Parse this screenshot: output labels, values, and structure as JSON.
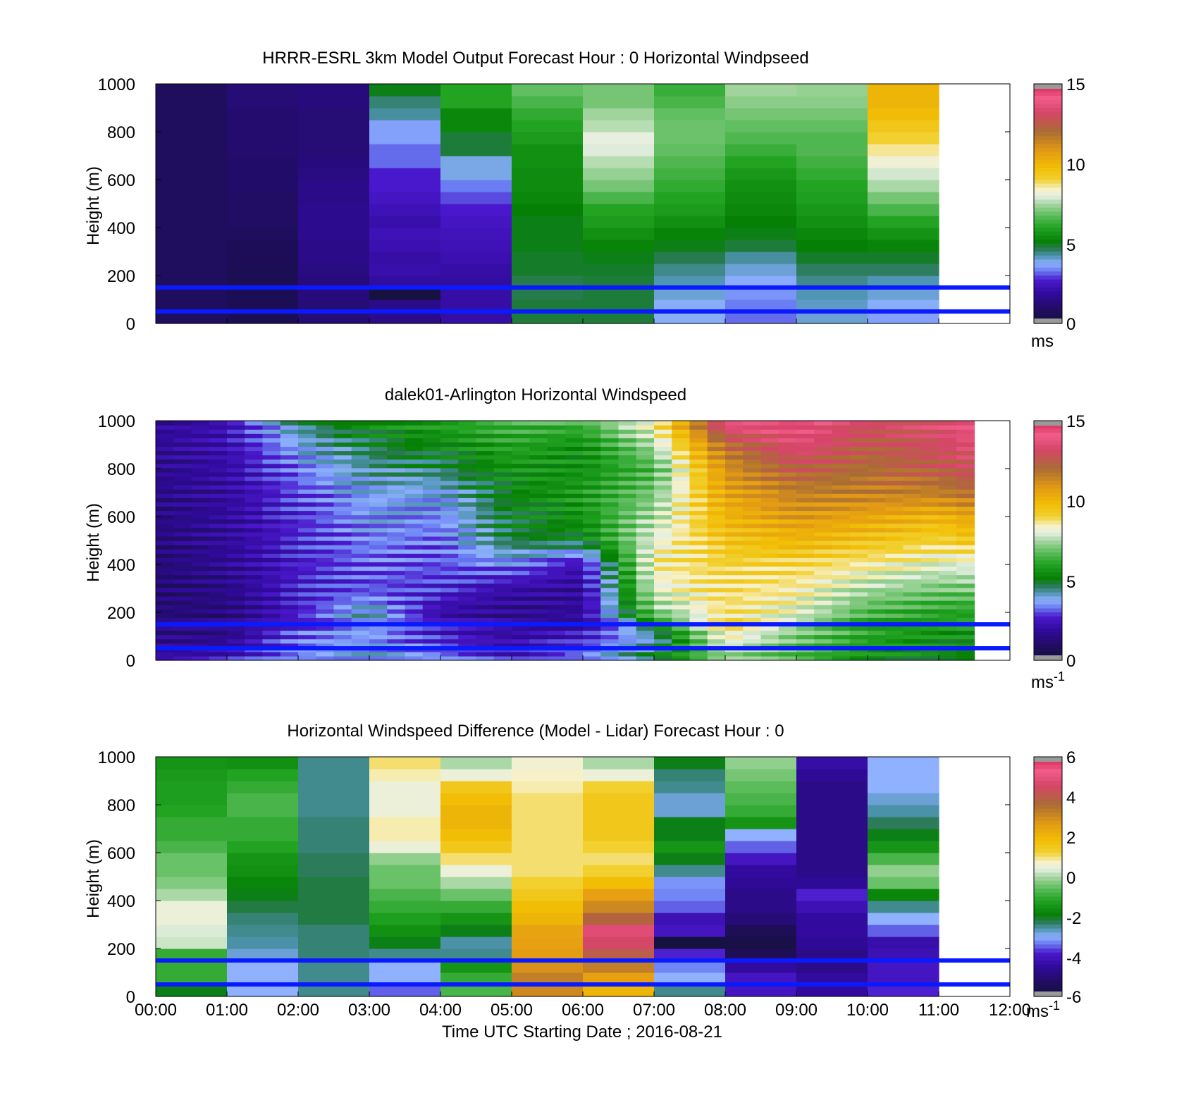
{
  "figure": {
    "xlabel": "Time UTC  Starting Date ; 2016-08-21",
    "x_ticks": [
      "00:00",
      "01:00",
      "02:00",
      "03:00",
      "04:00",
      "05:00",
      "06:00",
      "07:00",
      "08:00",
      "09:00",
      "10:00",
      "11:00",
      "12:00"
    ],
    "y_ticks": [
      "0",
      "200",
      "400",
      "600",
      "800",
      "1000"
    ],
    "reference_lines_m": [
      150,
      50
    ],
    "reference_line_color": "#0a1aff"
  },
  "panels": [
    {
      "title": "HRRR-ESRL 3km Model Output   Forecast Hour : 0 Horizontal Windpseed",
      "ylabel": "Height (m)",
      "unit_base": "ms",
      "unit_sup": "",
      "cbar_ticks": [
        "15",
        "10",
        "5",
        "0"
      ]
    },
    {
      "title": "dalek01-Arlington  Horizontal Windspeed",
      "ylabel": "Height (m)",
      "unit_base": "ms",
      "unit_sup": "-1",
      "cbar_ticks": [
        "15",
        "10",
        "5",
        "0"
      ]
    },
    {
      "title": "Horizontal Windspeed Difference (Model - Lidar) Forecast Hour : 0",
      "ylabel": "Height (m)",
      "unit_base": "ms",
      "unit_sup": "-1",
      "cbar_ticks": [
        "6",
        "4",
        "2",
        "0",
        "-2",
        "-4",
        "-6"
      ]
    }
  ],
  "chart_data": [
    {
      "type": "heatmap",
      "title": "HRRR-ESRL 3km Model Output   Forecast Hour : 0 Horizontal Windpseed",
      "xlabel": "",
      "ylabel": "Height (m)",
      "xlim_hours": [
        0,
        12
      ],
      "ylim": [
        0,
        1000
      ],
      "color_range": [
        0,
        15
      ],
      "hour_starts": [
        0,
        1,
        2,
        3,
        4,
        5,
        6,
        7,
        8,
        9,
        10
      ],
      "height_levels_m": [
        25,
        75,
        125,
        175,
        225,
        275,
        325,
        375,
        425,
        475,
        525,
        575,
        625,
        675,
        725,
        775,
        825,
        875,
        925,
        975
      ],
      "values": [
        [
          0.8,
          0.8,
          0.8,
          0.8,
          0.8,
          0.8,
          0.8,
          0.8,
          0.8,
          0.8,
          0.8,
          0.8,
          0.8,
          0.8,
          0.8,
          0.8,
          0.8,
          0.8,
          0.8,
          0.8
        ],
        [
          0.6,
          0.6,
          0.6,
          0.6,
          0.6,
          0.7,
          0.7,
          0.8,
          0.9,
          0.9,
          0.9,
          1.0,
          1.0,
          1.0,
          1.1,
          1.1,
          1.1,
          1.1,
          1.2,
          1.2
        ],
        [
          1.2,
          1.2,
          1.3,
          1.3,
          1.4,
          1.5,
          1.5,
          1.6,
          1.6,
          1.6,
          1.5,
          1.5,
          1.4,
          1.3,
          1.2,
          1.2,
          1.2,
          1.2,
          1.3,
          1.3
        ],
        [
          1.5,
          1.5,
          0.0,
          1.9,
          2.1,
          2.0,
          2.2,
          2.3,
          2.1,
          2.3,
          2.5,
          2.7,
          2.7,
          3.2,
          3.2,
          3.6,
          3.6,
          4.3,
          4.5,
          5.0
        ],
        [
          2.0,
          2.0,
          2.0,
          1.9,
          2.0,
          2.2,
          2.3,
          2.4,
          2.5,
          2.7,
          3.0,
          3.3,
          3.9,
          3.9,
          4.8,
          4.8,
          5.3,
          5.3,
          6.0,
          6.0
        ],
        [
          4.8,
          4.8,
          4.7,
          4.7,
          4.9,
          4.9,
          5.0,
          5.0,
          5.0,
          5.1,
          5.3,
          5.4,
          5.4,
          5.5,
          5.5,
          5.8,
          6.0,
          6.2,
          6.5,
          6.8
        ],
        [
          4.8,
          4.8,
          4.8,
          4.8,
          4.9,
          5.0,
          5.2,
          5.5,
          5.8,
          6.0,
          6.5,
          7.0,
          7.3,
          7.6,
          7.9,
          8.0,
          7.6,
          7.4,
          7.0,
          7.0
        ],
        [
          3.8,
          3.8,
          4.0,
          4.2,
          4.4,
          4.7,
          5.0,
          5.2,
          5.5,
          5.8,
          6.0,
          6.2,
          6.4,
          6.6,
          6.8,
          6.9,
          6.9,
          6.8,
          6.5,
          6.3
        ],
        [
          3.2,
          3.3,
          3.5,
          3.7,
          4.0,
          4.3,
          4.8,
          5.0,
          5.1,
          5.3,
          5.4,
          5.5,
          5.7,
          6.0,
          6.3,
          6.6,
          6.8,
          7.0,
          7.2,
          7.4
        ],
        [
          4.0,
          4.1,
          4.2,
          4.4,
          4.6,
          4.9,
          5.1,
          5.3,
          5.5,
          5.7,
          5.9,
          6.0,
          6.2,
          6.4,
          6.6,
          6.6,
          6.8,
          7.0,
          7.2,
          7.3
        ],
        [
          3.6,
          3.8,
          4.0,
          4.2,
          4.6,
          4.9,
          5.2,
          5.6,
          6.0,
          6.5,
          7.0,
          7.5,
          7.8,
          8.2,
          8.6,
          9.0,
          9.4,
          9.8,
          10.0,
          10.0
        ]
      ],
      "reference_lines_m": [
        150,
        50
      ]
    },
    {
      "type": "heatmap",
      "title": "dalek01-Arlington  Horizontal Windspeed",
      "xlabel": "",
      "ylabel": "Height (m)",
      "xlim_hours": [
        0,
        12
      ],
      "ylim": [
        0,
        1000
      ],
      "color_range": [
        0,
        15
      ],
      "note_text": "",
      "time_anchor_hours": [
        0,
        1,
        2,
        3,
        4,
        5,
        6,
        7,
        8,
        9,
        10,
        11,
        11.5
      ],
      "height_anchor_m": [
        0,
        100,
        200,
        300,
        400,
        500,
        600,
        700,
        800,
        900,
        1000
      ],
      "anchor_values": [
        [
          2.0,
          1.5,
          1.2,
          1.2,
          1.2,
          1.3,
          1.4,
          1.5,
          1.6,
          1.7,
          1.8
        ],
        [
          2.5,
          1.5,
          1.3,
          1.5,
          1.7,
          1.8,
          1.8,
          1.9,
          2.0,
          2.2,
          2.2
        ],
        [
          3.5,
          3.2,
          2.6,
          2.6,
          2.6,
          2.7,
          2.8,
          3.0,
          3.3,
          3.8,
          4.5
        ],
        [
          3.8,
          3.6,
          4.2,
          3.0,
          3.2,
          3.4,
          3.6,
          3.8,
          4.3,
          4.8,
          5.5
        ],
        [
          3.5,
          2.6,
          2.0,
          2.8,
          3.0,
          3.2,
          3.4,
          3.8,
          4.6,
          5.3,
          6.0
        ],
        [
          2.5,
          2.0,
          1.6,
          2.0,
          3.5,
          4.8,
          5.0,
          5.2,
          5.6,
          6.0,
          6.5
        ],
        [
          3.5,
          2.5,
          1.8,
          1.8,
          2.2,
          5.0,
          5.6,
          5.8,
          5.5,
          5.5,
          6.5
        ],
        [
          5.0,
          4.0,
          7.0,
          8.0,
          8.5,
          8.0,
          7.5,
          7.0,
          6.5,
          7.5,
          8.5
        ],
        [
          7.0,
          8.5,
          8.8,
          8.8,
          9.0,
          9.5,
          10.0,
          10.5,
          11.0,
          12.0,
          14.0
        ],
        [
          6.5,
          7.0,
          8.0,
          8.5,
          9.0,
          10.0,
          10.8,
          11.5,
          12.5,
          13.5,
          14.0
        ],
        [
          5.5,
          6.0,
          6.5,
          7.5,
          8.5,
          9.5,
          10.5,
          11.5,
          12.0,
          12.5,
          13.0
        ],
        [
          5.0,
          5.5,
          6.0,
          7.0,
          8.0,
          9.0,
          10.0,
          11.5,
          12.5,
          13.0,
          13.5
        ],
        [
          5.0,
          5.5,
          6.0,
          7.0,
          8.0,
          9.5,
          10.5,
          12.0,
          13.0,
          13.5,
          14.0
        ]
      ],
      "reference_lines_m": [
        150,
        50
      ]
    },
    {
      "type": "heatmap",
      "title": "Horizontal Windspeed Difference (Model - Lidar) Forecast Hour : 0",
      "xlabel": "Time UTC  Starting Date ; 2016-08-21",
      "ylabel": "Height (m)",
      "xlim_hours": [
        0,
        12
      ],
      "ylim": [
        0,
        1000
      ],
      "color_range": [
        -6,
        6
      ],
      "hour_starts": [
        0,
        1,
        2,
        3,
        4,
        5,
        6,
        7,
        8,
        9,
        10
      ],
      "height_levels_m": [
        25,
        75,
        125,
        175,
        225,
        275,
        325,
        375,
        425,
        475,
        525,
        575,
        625,
        675,
        725,
        775,
        825,
        875,
        925,
        975
      ],
      "values": [
        [
          -2.0,
          -1.0,
          -1.0,
          -1.0,
          0.2,
          0.3,
          0.5,
          0.5,
          0.0,
          -0.3,
          -0.5,
          -0.5,
          -0.8,
          -1.0,
          -1.0,
          -1.2,
          -1.3,
          -1.3,
          -1.4,
          -1.5
        ],
        [
          -3.0,
          -3.0,
          -3.0,
          -2.8,
          -2.6,
          -2.5,
          -2.4,
          -2.2,
          -2.0,
          -1.8,
          -1.6,
          -1.5,
          -1.2,
          -1.0,
          -1.0,
          -0.8,
          -0.8,
          -1.0,
          -1.2,
          -1.6
        ],
        [
          -2.5,
          -2.5,
          -2.5,
          -2.4,
          -2.4,
          -2.4,
          -2.2,
          -2.2,
          -2.2,
          -2.2,
          -2.3,
          -2.3,
          -2.4,
          -2.4,
          -2.4,
          -2.5,
          -2.5,
          -2.5,
          -2.5,
          -2.5
        ],
        [
          -3.5,
          -3.0,
          -3.0,
          -2.5,
          -2.0,
          -1.6,
          -1.3,
          -1.0,
          -0.8,
          -0.5,
          -0.5,
          -0.2,
          0.5,
          0.8,
          0.8,
          0.5,
          0.5,
          0.5,
          0.8,
          1.0
        ],
        [
          -0.8,
          -1.0,
          -1.5,
          -2.5,
          -2.6,
          -2.0,
          -1.5,
          -1.0,
          -0.5,
          0.0,
          0.5,
          1.0,
          1.5,
          1.8,
          2.0,
          2.0,
          1.8,
          1.5,
          0.5,
          0.0
        ],
        [
          3.0,
          3.2,
          2.8,
          2.6,
          2.5,
          2.4,
          2.0,
          1.8,
          1.5,
          1.2,
          1.0,
          1.0,
          1.0,
          1.0,
          1.0,
          1.0,
          1.0,
          0.8,
          0.7,
          0.6
        ],
        [
          2.0,
          2.5,
          3.2,
          4.0,
          4.5,
          4.8,
          3.8,
          3.0,
          2.5,
          1.8,
          1.2,
          1.0,
          1.2,
          1.5,
          1.5,
          1.5,
          1.5,
          1.2,
          0.5,
          0.0
        ],
        [
          -2.5,
          -3.0,
          -3.3,
          -3.8,
          -6.0,
          -4.0,
          -4.2,
          -3.5,
          -3.3,
          -3.2,
          -2.5,
          -2.0,
          -1.5,
          -2.0,
          -2.0,
          -2.8,
          -2.8,
          -2.5,
          -2.4,
          -2.0
        ],
        [
          -4.0,
          -4.0,
          -4.5,
          -5.5,
          -5.8,
          -5.5,
          -5.0,
          -4.8,
          -4.8,
          -4.6,
          -4.5,
          -4.0,
          -3.5,
          -3.0,
          -1.5,
          -1.0,
          -0.8,
          -0.6,
          -0.4,
          -0.2
        ],
        [
          -4.5,
          -4.5,
          -4.8,
          -4.8,
          -4.6,
          -4.5,
          -4.5,
          -4.2,
          -3.8,
          -4.6,
          -4.8,
          -4.8,
          -4.8,
          -4.8,
          -4.8,
          -4.8,
          -4.8,
          -4.8,
          -4.6,
          -4.4
        ],
        [
          -3.8,
          -4.0,
          -4.0,
          -4.2,
          -4.3,
          -3.5,
          -3.0,
          -2.5,
          -1.8,
          -0.5,
          -0.2,
          -0.8,
          -1.5,
          -2.0,
          -2.3,
          -2.6,
          -2.8,
          -3.0,
          -3.0,
          -3.0
        ]
      ],
      "reference_lines_m": [
        150,
        50
      ]
    }
  ]
}
